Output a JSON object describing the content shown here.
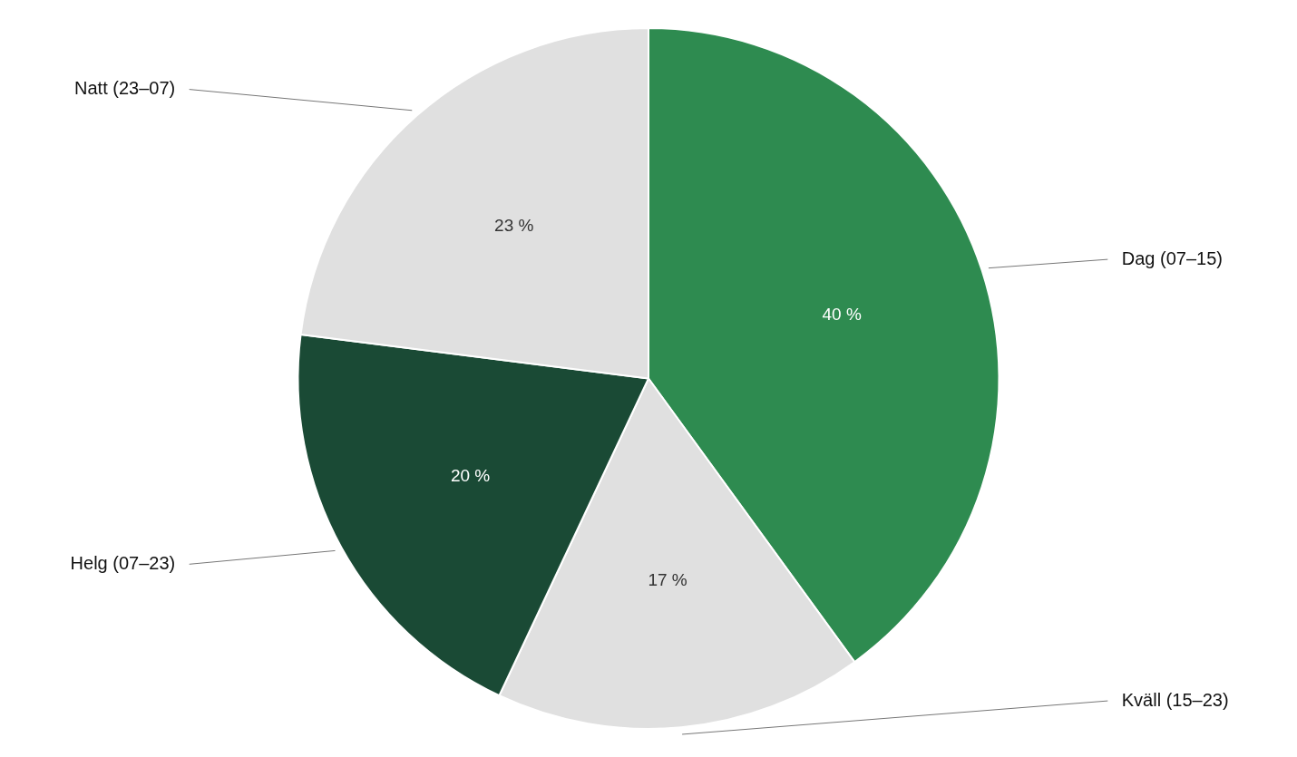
{
  "chart_data": {
    "type": "pie",
    "categories": [
      "Dag (07–15)",
      "Kväll (15–23)",
      "Helg (07–23)",
      "Natt (23–07)"
    ],
    "values": [
      40,
      17,
      20,
      23
    ],
    "value_labels": [
      "40 %",
      "17 %",
      "20 %",
      "23 %"
    ],
    "colors": [
      "#2e8b50",
      "#e0e0e0",
      "#1a4a35",
      "#e0e0e0"
    ],
    "data_labels": true
  }
}
